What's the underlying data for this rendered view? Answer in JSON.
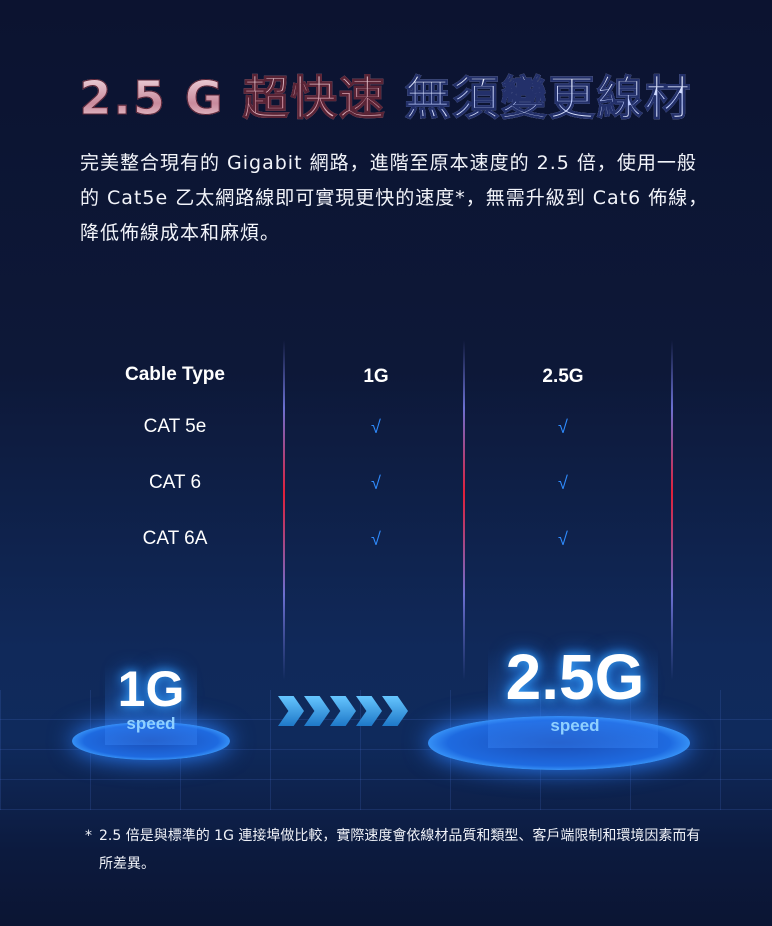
{
  "headline": {
    "part1": "2.5 G 超快速",
    "part2": "無須變更線材"
  },
  "intro": "完美整合現有的 Gigabit 網路，進階至原本速度的 2.5 倍，使用一般的 Cat5e 乙太網路線即可實現更快的速度*，無需升級到 Cat6 佈線，降低佈線成本和麻煩。",
  "table": {
    "headers": [
      "Cable Type",
      "1G",
      "2.5G"
    ],
    "rows": [
      {
        "type": "CAT 5e",
        "g1": "√",
        "g25": "√"
      },
      {
        "type": "CAT 6",
        "g1": "√",
        "g25": "√"
      },
      {
        "type": "CAT 6A",
        "g1": "√",
        "g25": "√"
      }
    ]
  },
  "graphic": {
    "left": {
      "value": "1G",
      "unit": "speed"
    },
    "right": {
      "value": "2.5G",
      "unit": "speed"
    },
    "accent": "#2f8cff"
  },
  "footnote": {
    "mark": "*",
    "text": "2.5 倍是與標準的 1G 連接埠做比較，實際速度會依線材品質和類型、客戶端限制和環境因素而有所差異。"
  }
}
